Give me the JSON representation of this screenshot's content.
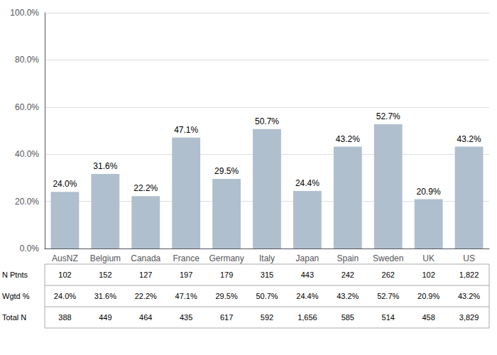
{
  "chart_data": {
    "type": "bar",
    "categories": [
      "AusNZ",
      "Belgium",
      "Canada",
      "France",
      "Germany",
      "Italy",
      "Japan",
      "Spain",
      "Sweden",
      "UK",
      "US"
    ],
    "values": [
      24.0,
      31.6,
      22.2,
      47.1,
      29.5,
      50.7,
      24.4,
      43.2,
      52.7,
      20.9,
      43.2
    ],
    "value_labels": [
      "24.0%",
      "31.6%",
      "22.2%",
      "47.1%",
      "29.5%",
      "50.7%",
      "24.4%",
      "43.2%",
      "52.7%",
      "20.9%",
      "43.2%"
    ],
    "data_labels": true,
    "color": "#b0bfce",
    "ylim": [
      0,
      100
    ],
    "yticks": [
      {
        "value": 0,
        "label": "0.0%"
      },
      {
        "value": 20,
        "label": "20.0%"
      },
      {
        "value": 40,
        "label": "40.0%"
      },
      {
        "value": 60,
        "label": "60.0%"
      },
      {
        "value": 80,
        "label": "80.0%"
      },
      {
        "value": 100,
        "label": "100.0%"
      }
    ],
    "grid": true,
    "table": [
      {
        "name": "N Ptnts",
        "values": [
          102,
          152,
          127,
          197,
          179,
          315,
          443,
          242,
          262,
          102,
          1822
        ],
        "value_labels": [
          "102",
          "152",
          "127",
          "197",
          "179",
          "315",
          "443",
          "242",
          "262",
          "102",
          "1,822"
        ]
      },
      {
        "name": "Wgtd %",
        "values": [
          24.0,
          31.6,
          22.2,
          47.1,
          29.5,
          50.7,
          24.4,
          43.2,
          52.7,
          20.9,
          43.2
        ],
        "value_labels": [
          "24.0%",
          "31.6%",
          "22.2%",
          "47.1%",
          "29.5%",
          "50.7%",
          "24.4%",
          "43.2%",
          "52.7%",
          "20.9%",
          "43.2%"
        ]
      },
      {
        "name": "Total N",
        "values": [
          388,
          449,
          464,
          435,
          617,
          592,
          1656,
          585,
          514,
          458,
          3829
        ],
        "value_labels": [
          "388",
          "449",
          "464",
          "435",
          "617",
          "592",
          "1,656",
          "585",
          "514",
          "458",
          "3,829"
        ]
      }
    ]
  }
}
